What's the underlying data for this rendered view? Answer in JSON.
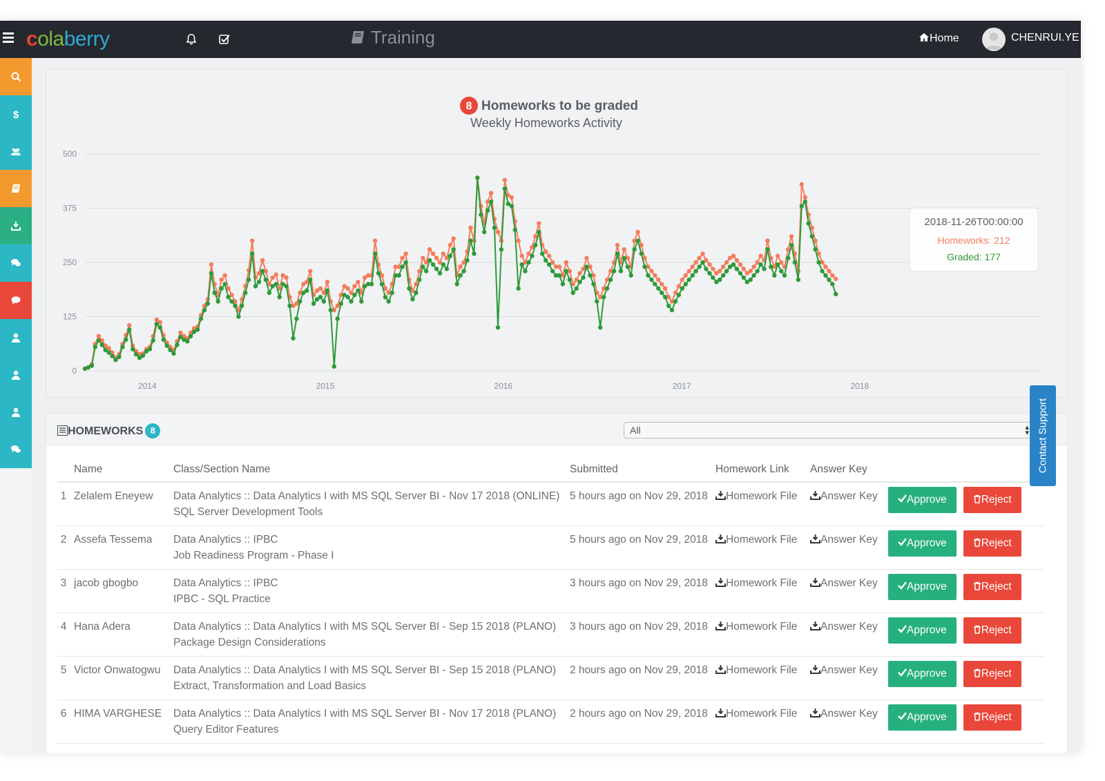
{
  "brand": {
    "logo_text_1": "c",
    "logo_text_2": "ola",
    "logo_text_3": "berry"
  },
  "header": {
    "title": "Training",
    "home_label": "Home",
    "username": "CHENRUI.YE"
  },
  "sidebar": {
    "items": [
      {
        "icon": "search-icon",
        "color": "#f39a2e"
      },
      {
        "icon": "dollar-icon",
        "color": "#2bb7c5"
      },
      {
        "icon": "users-icon",
        "color": "#2bb7c5"
      },
      {
        "icon": "book-icon",
        "color": "#f39a2e"
      },
      {
        "icon": "download-icon",
        "color": "#2bb086"
      },
      {
        "icon": "comments-icon",
        "color": "#2bb7c5"
      },
      {
        "icon": "comment-icon",
        "color": "#e8473a"
      },
      {
        "icon": "user-icon",
        "color": "#2bb7c5"
      },
      {
        "icon": "user-icon",
        "color": "#2bb7c5"
      },
      {
        "icon": "user-icon",
        "color": "#2bb7c5"
      },
      {
        "icon": "comments-icon",
        "color": "#2bb7c5"
      }
    ]
  },
  "chart_header": {
    "badge": "8",
    "title": "Homeworks to be graded",
    "subtitle": "Weekly Homeworks Activity"
  },
  "tooltip": {
    "date": "2018-11-26T00:00:00",
    "homeworks": "Homeworks: 212",
    "graded": "Graded: 177"
  },
  "chart_data": {
    "type": "line",
    "ylim": [
      0,
      500
    ],
    "yticks": [
      "0",
      "125",
      "250",
      "375",
      "500"
    ],
    "xticks": [
      "2014",
      "2015",
      "2016",
      "2017",
      "2018"
    ],
    "x_range": [
      "2013-08-26",
      "2018-12-10"
    ],
    "colors": {
      "homeworks": "#f47d5c",
      "graded": "#2e9a3a"
    },
    "series": [
      {
        "name": "Homeworks",
        "values": [
          5,
          8,
          15,
          62,
          80,
          70,
          58,
          52,
          42,
          30,
          38,
          62,
          82,
          105,
          58,
          45,
          38,
          40,
          50,
          55,
          80,
          118,
          112,
          82,
          65,
          55,
          48,
          68,
          88,
          80,
          75,
          88,
          98,
          102,
          128,
          150,
          165,
          245,
          200,
          175,
          210,
          220,
          190,
          175,
          160,
          140,
          165,
          195,
          232,
          300,
          215,
          225,
          255,
          230,
          200,
          215,
          222,
          190,
          220,
          215,
          170,
          150,
          155,
          180,
          200,
          205,
          230,
          175,
          185,
          190,
          180,
          205,
          160,
          140,
          150,
          175,
          195,
          190,
          180,
          195,
          205,
          180,
          215,
          220,
          220,
          300,
          245,
          220,
          190,
          180,
          200,
          240,
          240,
          260,
          270,
          210,
          185,
          200,
          230,
          260,
          250,
          280,
          270,
          260,
          250,
          270,
          260,
          290,
          305,
          220,
          240,
          250,
          275,
          330,
          300,
          445,
          380,
          340,
          390,
          410,
          350,
          320,
          300,
          440,
          405,
          400,
          345,
          300,
          265,
          250,
          270,
          285,
          310,
          340,
          290,
          275,
          265,
          250,
          240,
          240,
          220,
          250,
          230,
          200,
          210,
          225,
          235,
          260,
          240,
          220,
          180,
          170,
          190,
          210,
          230,
          250,
          290,
          250,
          280,
          260,
          240,
          300,
          320,
          290,
          260,
          240,
          230,
          220,
          210,
          200,
          190,
          170,
          160,
          180,
          195,
          210,
          220,
          230,
          240,
          250,
          260,
          270,
          255,
          245,
          235,
          225,
          230,
          240,
          250,
          260,
          265,
          255,
          245,
          235,
          225,
          230,
          240,
          250,
          265,
          255,
          300,
          260,
          240,
          265,
          250,
          240,
          280,
          310,
          270,
          230,
          430,
          400,
          360,
          330,
          300,
          270,
          250,
          240,
          230,
          220,
          212
        ]
      },
      {
        "name": "Graded",
        "values": [
          5,
          8,
          12,
          55,
          70,
          60,
          48,
          42,
          34,
          25,
          32,
          55,
          72,
          95,
          50,
          38,
          30,
          35,
          45,
          50,
          70,
          108,
          100,
          72,
          58,
          48,
          40,
          60,
          78,
          72,
          68,
          80,
          90,
          95,
          120,
          140,
          155,
          225,
          180,
          160,
          190,
          200,
          170,
          160,
          150,
          125,
          150,
          180,
          210,
          270,
          195,
          205,
          230,
          210,
          180,
          195,
          200,
          170,
          200,
          195,
          150,
          75,
          120,
          160,
          180,
          185,
          210,
          155,
          165,
          170,
          160,
          185,
          140,
          10,
          120,
          155,
          175,
          170,
          160,
          175,
          185,
          160,
          195,
          200,
          200,
          270,
          225,
          200,
          170,
          160,
          180,
          220,
          220,
          240,
          250,
          190,
          165,
          180,
          210,
          240,
          230,
          255,
          245,
          235,
          225,
          245,
          235,
          265,
          280,
          200,
          220,
          230,
          255,
          300,
          270,
          445,
          360,
          320,
          370,
          390,
          330,
          100,
          280,
          420,
          385,
          380,
          325,
          190,
          245,
          230,
          250,
          265,
          290,
          320,
          270,
          255,
          245,
          230,
          220,
          220,
          200,
          230,
          210,
          180,
          190,
          205,
          215,
          240,
          220,
          200,
          160,
          100,
          170,
          190,
          210,
          230,
          270,
          230,
          260,
          240,
          220,
          280,
          300,
          270,
          240,
          220,
          210,
          200,
          190,
          180,
          170,
          150,
          140,
          160,
          175,
          190,
          200,
          210,
          220,
          230,
          240,
          250,
          235,
          225,
          215,
          205,
          210,
          220,
          230,
          240,
          245,
          235,
          225,
          215,
          205,
          210,
          220,
          230,
          245,
          235,
          280,
          240,
          220,
          245,
          230,
          220,
          260,
          290,
          250,
          210,
          380,
          390,
          340,
          310,
          280,
          250,
          230,
          220,
          210,
          200,
          177
        ]
      }
    ]
  },
  "homeworks": {
    "title": "HOMEWORKS",
    "count": "8",
    "filter_value": "All",
    "columns": [
      "Name",
      "Class/Section Name",
      "Submitted",
      "Homework Link",
      "Answer Key"
    ],
    "homework_link_label": "Homework File",
    "answer_key_label": "Answer Key",
    "approve_label": "Approve",
    "reject_label": "Reject",
    "rows": [
      {
        "idx": "1",
        "name": "Zelalem Eneyew",
        "class_line1": "Data Analytics :: Data Analytics I with MS SQL Server BI - Nov 17 2018 (ONLINE)",
        "class_line2": "SQL Server Development Tools",
        "submitted": "5 hours ago on Nov 29, 2018"
      },
      {
        "idx": "2",
        "name": "Assefa Tessema",
        "class_line1": "Data Analytics :: IPBC",
        "class_line2": "Job Readiness Program - Phase I",
        "submitted": "5 hours ago on Nov 29, 2018"
      },
      {
        "idx": "3",
        "name": "jacob gbogbo",
        "class_line1": "Data Analytics :: IPBC",
        "class_line2": "IPBC - SQL Practice",
        "submitted": "3 hours ago on Nov 29, 2018"
      },
      {
        "idx": "4",
        "name": "Hana Adera",
        "class_line1": "Data Analytics :: Data Analytics I with MS SQL Server BI - Sep 15 2018 (PLANO)",
        "class_line2": "Package Design Considerations",
        "submitted": "3 hours ago on Nov 29, 2018"
      },
      {
        "idx": "5",
        "name": "Victor Onwatogwu",
        "class_line1": "Data Analytics :: Data Analytics I with MS SQL Server BI - Sep 15 2018 (PLANO)",
        "class_line2": "Extract, Transformation and Load Basics",
        "submitted": "2 hours ago on Nov 29, 2018"
      },
      {
        "idx": "6",
        "name": "HIMA VARGHESE",
        "class_line1": "Data Analytics :: Data Analytics I with MS SQL Server BI - Nov 17 2018 (PLANO)",
        "class_line2": "Query Editor Features",
        "submitted": "2 hours ago on Nov 29, 2018"
      }
    ]
  },
  "contact_support": "Contact Support"
}
